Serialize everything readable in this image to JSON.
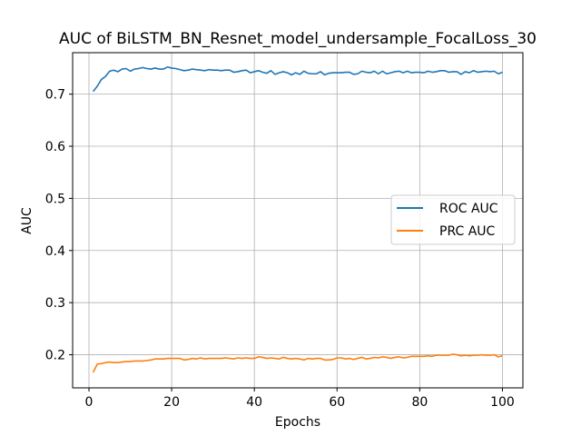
{
  "chart_data": {
    "type": "line",
    "title": "AUC of BiLSTM_BN_Resnet_model_undersample_FocalLoss_30",
    "xlabel": "Epochs",
    "ylabel": "AUC",
    "xlim": [
      -3.95,
      104.95
    ],
    "ylim": [
      0.1365,
      0.7795
    ],
    "xticks": [
      0,
      20,
      40,
      60,
      80,
      100
    ],
    "yticks": [
      0.2,
      0.3,
      0.4,
      0.5,
      0.6,
      0.7
    ],
    "xtick_labels": [
      "0",
      "20",
      "40",
      "60",
      "80",
      "100"
    ],
    "ytick_labels": [
      "0.2",
      "0.3",
      "0.4",
      "0.5",
      "0.6",
      "0.7"
    ],
    "grid": true,
    "legend_position": "center-right",
    "x": [
      1,
      2,
      3,
      4,
      5,
      6,
      7,
      8,
      9,
      10,
      11,
      12,
      13,
      14,
      15,
      16,
      17,
      18,
      19,
      20,
      21,
      22,
      23,
      24,
      25,
      26,
      27,
      28,
      29,
      30,
      31,
      32,
      33,
      34,
      35,
      36,
      37,
      38,
      39,
      40,
      41,
      42,
      43,
      44,
      45,
      46,
      47,
      48,
      49,
      50,
      51,
      52,
      53,
      54,
      55,
      56,
      57,
      58,
      59,
      60,
      61,
      62,
      63,
      64,
      65,
      66,
      67,
      68,
      69,
      70,
      71,
      72,
      73,
      74,
      75,
      76,
      77,
      78,
      79,
      80,
      81,
      82,
      83,
      84,
      85,
      86,
      87,
      88,
      89,
      90,
      91,
      92,
      93,
      94,
      95,
      96,
      97,
      98,
      99,
      100
    ],
    "series": [
      {
        "name": "ROC AUC",
        "color": "#1f77b4",
        "values": [
          0.705,
          0.715,
          0.728,
          0.734,
          0.744,
          0.746,
          0.743,
          0.748,
          0.749,
          0.744,
          0.748,
          0.749,
          0.751,
          0.749,
          0.748,
          0.75,
          0.748,
          0.748,
          0.752,
          0.75,
          0.749,
          0.747,
          0.745,
          0.746,
          0.748,
          0.747,
          0.746,
          0.745,
          0.747,
          0.746,
          0.746,
          0.745,
          0.746,
          0.746,
          0.742,
          0.743,
          0.745,
          0.746,
          0.741,
          0.743,
          0.745,
          0.742,
          0.74,
          0.745,
          0.738,
          0.741,
          0.743,
          0.741,
          0.737,
          0.741,
          0.738,
          0.744,
          0.74,
          0.739,
          0.739,
          0.743,
          0.737,
          0.74,
          0.741,
          0.741,
          0.741,
          0.742,
          0.742,
          0.738,
          0.739,
          0.744,
          0.742,
          0.741,
          0.744,
          0.739,
          0.744,
          0.739,
          0.741,
          0.743,
          0.744,
          0.741,
          0.744,
          0.741,
          0.742,
          0.742,
          0.741,
          0.744,
          0.742,
          0.743,
          0.745,
          0.745,
          0.742,
          0.743,
          0.743,
          0.738,
          0.743,
          0.741,
          0.745,
          0.742,
          0.743,
          0.744,
          0.743,
          0.744,
          0.739,
          0.742
        ]
      },
      {
        "name": "PRC AUC",
        "color": "#ff7f0e",
        "values": [
          0.166,
          0.182,
          0.183,
          0.185,
          0.186,
          0.185,
          0.185,
          0.186,
          0.187,
          0.187,
          0.188,
          0.188,
          0.188,
          0.189,
          0.19,
          0.192,
          0.192,
          0.192,
          0.193,
          0.193,
          0.193,
          0.193,
          0.19,
          0.191,
          0.193,
          0.192,
          0.194,
          0.192,
          0.193,
          0.193,
          0.193,
          0.193,
          0.194,
          0.193,
          0.192,
          0.194,
          0.193,
          0.194,
          0.193,
          0.193,
          0.196,
          0.195,
          0.193,
          0.194,
          0.193,
          0.192,
          0.195,
          0.193,
          0.192,
          0.193,
          0.192,
          0.19,
          0.193,
          0.192,
          0.193,
          0.193,
          0.19,
          0.19,
          0.191,
          0.194,
          0.194,
          0.192,
          0.193,
          0.191,
          0.193,
          0.195,
          0.192,
          0.193,
          0.195,
          0.194,
          0.196,
          0.195,
          0.193,
          0.195,
          0.196,
          0.194,
          0.195,
          0.197,
          0.197,
          0.197,
          0.197,
          0.198,
          0.197,
          0.199,
          0.199,
          0.199,
          0.199,
          0.201,
          0.2,
          0.198,
          0.199,
          0.198,
          0.199,
          0.199,
          0.2,
          0.199,
          0.199,
          0.2,
          0.196,
          0.198
        ]
      }
    ]
  }
}
